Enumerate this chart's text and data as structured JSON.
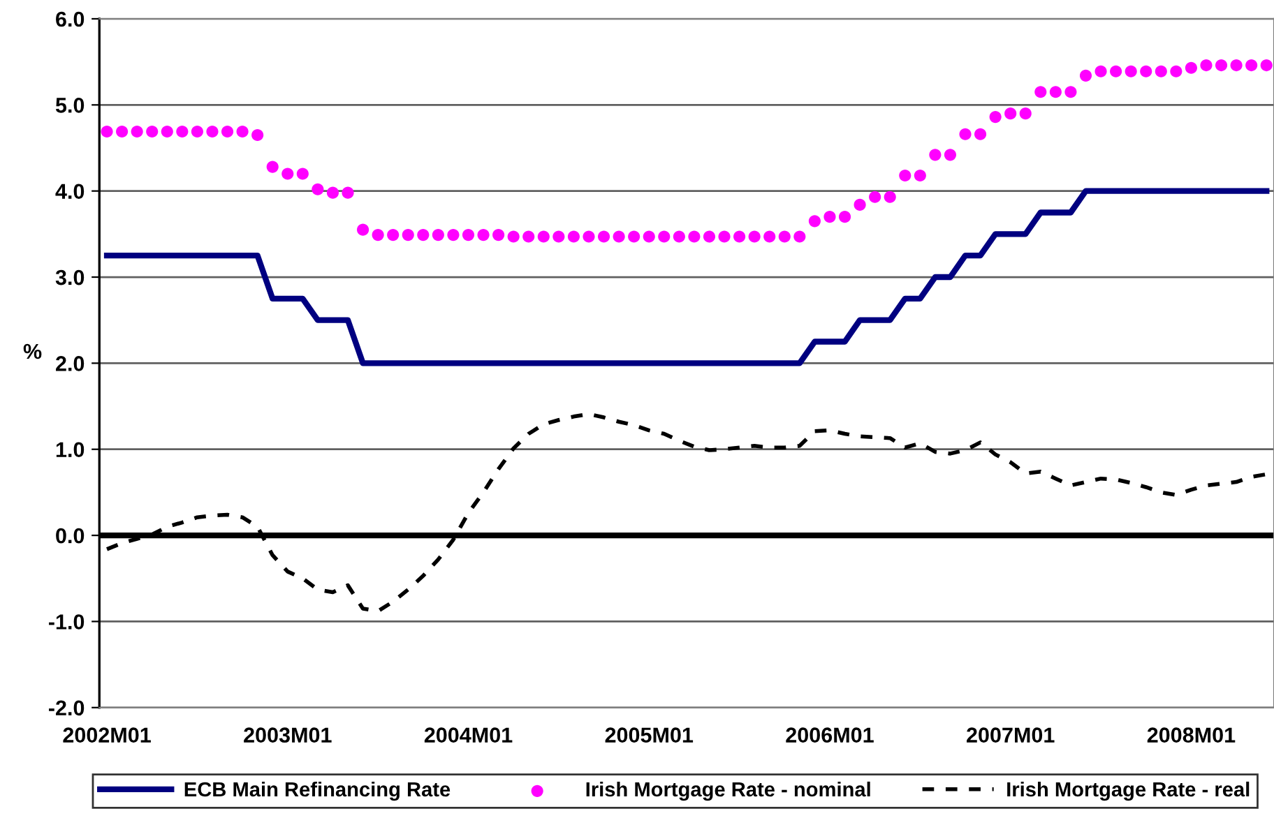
{
  "chart_data": {
    "type": "line",
    "ylabel": "%",
    "categories": [
      "2002M01",
      null,
      null,
      null,
      null,
      null,
      null,
      null,
      null,
      null,
      null,
      null,
      "2003M01",
      null,
      null,
      null,
      null,
      null,
      null,
      null,
      null,
      null,
      null,
      null,
      "2004M01",
      null,
      null,
      null,
      null,
      null,
      null,
      null,
      null,
      null,
      null,
      null,
      "2005M01",
      null,
      null,
      null,
      null,
      null,
      null,
      null,
      null,
      null,
      null,
      null,
      "2006M01",
      null,
      null,
      null,
      null,
      null,
      null,
      null,
      null,
      null,
      null,
      null,
      "2007M01",
      null,
      null,
      null,
      null,
      null,
      null,
      null,
      null,
      null,
      null,
      null,
      "2008M01",
      null,
      null,
      null,
      null,
      null
    ],
    "series": [
      {
        "name": "ECB Main Refinancing Rate",
        "color": "#000080",
        "line_style": "solid",
        "marker": "none",
        "values": [
          3.25,
          3.25,
          3.25,
          3.25,
          3.25,
          3.25,
          3.25,
          3.25,
          3.25,
          3.25,
          3.25,
          2.75,
          2.75,
          2.75,
          2.5,
          2.5,
          2.5,
          2.0,
          2.0,
          2.0,
          2.0,
          2.0,
          2.0,
          2.0,
          2.0,
          2.0,
          2.0,
          2.0,
          2.0,
          2.0,
          2.0,
          2.0,
          2.0,
          2.0,
          2.0,
          2.0,
          2.0,
          2.0,
          2.0,
          2.0,
          2.0,
          2.0,
          2.0,
          2.0,
          2.0,
          2.0,
          2.0,
          2.25,
          2.25,
          2.25,
          2.5,
          2.5,
          2.5,
          2.75,
          2.75,
          3.0,
          3.0,
          3.25,
          3.25,
          3.5,
          3.5,
          3.5,
          3.75,
          3.75,
          3.75,
          4.0,
          4.0,
          4.0,
          4.0,
          4.0,
          4.0,
          4.0,
          4.0,
          4.0,
          4.0,
          4.0,
          4.0,
          4.0
        ]
      },
      {
        "name": "Irish Mortgage Rate - nominal",
        "type": "scatter",
        "color": "#ff00ff",
        "marker": "circle",
        "values": [
          4.69,
          4.69,
          4.69,
          4.69,
          4.69,
          4.69,
          4.69,
          4.69,
          4.69,
          4.69,
          4.65,
          4.28,
          4.2,
          4.2,
          4.02,
          3.98,
          3.98,
          3.55,
          3.49,
          3.49,
          3.49,
          3.49,
          3.49,
          3.49,
          3.49,
          3.49,
          3.49,
          3.47,
          3.47,
          3.47,
          3.47,
          3.47,
          3.47,
          3.47,
          3.47,
          3.47,
          3.47,
          3.47,
          3.47,
          3.47,
          3.47,
          3.47,
          3.47,
          3.47,
          3.47,
          3.47,
          3.47,
          3.65,
          3.7,
          3.7,
          3.84,
          3.93,
          3.93,
          4.18,
          4.18,
          4.42,
          4.42,
          4.66,
          4.66,
          4.86,
          4.9,
          4.9,
          5.15,
          5.15,
          5.15,
          5.34,
          5.39,
          5.39,
          5.39,
          5.39,
          5.39,
          5.39,
          5.43,
          5.46,
          5.46,
          5.46,
          5.46,
          5.46
        ]
      },
      {
        "name": "Irish Mortgage Rate - real",
        "color": "#000000",
        "line_style": "dashed",
        "marker": "none",
        "values": [
          -0.16,
          -0.09,
          -0.04,
          0.01,
          0.1,
          0.15,
          0.21,
          0.23,
          0.24,
          0.21,
          0.1,
          -0.23,
          -0.42,
          -0.5,
          -0.63,
          -0.66,
          -0.58,
          -0.85,
          -0.88,
          -0.77,
          -0.63,
          -0.47,
          -0.28,
          -0.05,
          0.26,
          0.5,
          0.77,
          1.01,
          1.18,
          1.29,
          1.34,
          1.38,
          1.41,
          1.37,
          1.32,
          1.28,
          1.22,
          1.18,
          1.1,
          1.03,
          0.99,
          1.0,
          1.02,
          1.04,
          1.02,
          1.02,
          1.04,
          1.21,
          1.22,
          1.18,
          1.15,
          1.14,
          1.13,
          1.02,
          1.07,
          0.97,
          0.95,
          0.99,
          1.08,
          0.94,
          0.85,
          0.72,
          0.74,
          0.66,
          0.58,
          0.62,
          0.66,
          0.65,
          0.61,
          0.56,
          0.5,
          0.47,
          0.53,
          0.58,
          0.6,
          0.62,
          0.68,
          0.71
        ]
      }
    ],
    "ylim": [
      -2.0,
      6.0
    ],
    "yticks": [
      {
        "value": -2,
        "label": "-2.0"
      },
      {
        "value": -1,
        "label": "-1.0"
      },
      {
        "value": 0,
        "label": "0.0"
      },
      {
        "value": 1,
        "label": "1.0"
      },
      {
        "value": 2,
        "label": "2.0"
      },
      {
        "value": 3,
        "label": "3.0"
      },
      {
        "value": 4,
        "label": "4.0"
      },
      {
        "value": 5,
        "label": "5.0"
      },
      {
        "value": 6,
        "label": "6.0"
      }
    ],
    "ref_lines": [
      {
        "axis": "y",
        "value": 0,
        "color": "#000000"
      }
    ],
    "grid": "y",
    "legend": "bottom"
  }
}
